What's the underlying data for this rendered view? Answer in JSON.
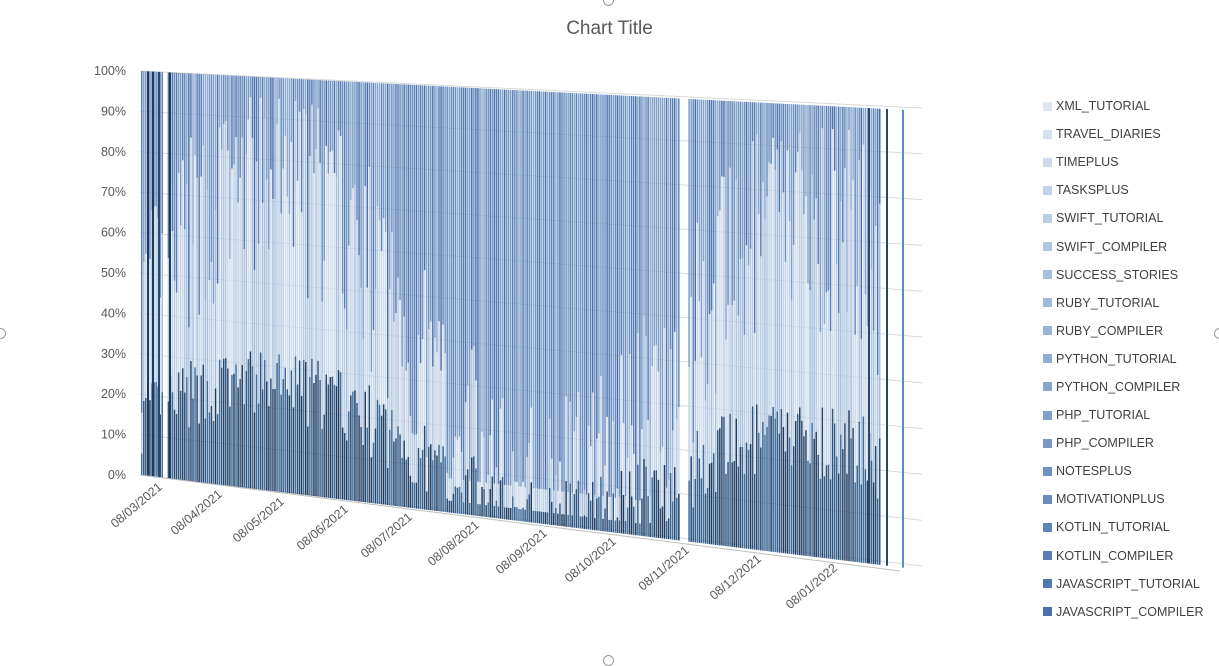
{
  "chart_data": {
    "type": "bar",
    "stacking": "percent",
    "view": "3d",
    "title": "Chart Title",
    "xlabel": "",
    "ylabel": "",
    "ylim": [
      0,
      1
    ],
    "y_ticks": [
      "0%",
      "10%",
      "20%",
      "30%",
      "40%",
      "50%",
      "60%",
      "70%",
      "80%",
      "90%",
      "100%"
    ],
    "x_ticks": [
      "08/03/2021",
      "08/04/2021",
      "08/05/2021",
      "08/06/2021",
      "08/07/2021",
      "08/08/2021",
      "08/09/2021",
      "08/10/2021",
      "08/11/2021",
      "08/12/2021",
      "08/01/2022"
    ],
    "grid": true,
    "legend_position": "right",
    "series": [
      {
        "name": "XML_TUTORIAL",
        "color": "#dde6f1"
      },
      {
        "name": "TRAVEL_DIARIES",
        "color": "#d5e0ee"
      },
      {
        "name": "TIMEPLUS",
        "color": "#ccdaea"
      },
      {
        "name": "TASKSPLUS",
        "color": "#c3d3e7"
      },
      {
        "name": "SWIFT_TUTORIAL",
        "color": "#bbcde3"
      },
      {
        "name": "SWIFT_COMPILER",
        "color": "#b2c6df"
      },
      {
        "name": "SUCCESS_STORIES",
        "color": "#a9c0dc"
      },
      {
        "name": "RUBY_TUTORIAL",
        "color": "#a1b9d8"
      },
      {
        "name": "RUBY_COMPILER",
        "color": "#98b3d4"
      },
      {
        "name": "PYTHON_TUTORIAL",
        "color": "#90acd1"
      },
      {
        "name": "PYTHON_COMPILER",
        "color": "#88a6cd"
      },
      {
        "name": "PHP_TUTORIAL",
        "color": "#809fca"
      },
      {
        "name": "PHP_COMPILER",
        "color": "#7899c6"
      },
      {
        "name": "NOTESPLUS",
        "color": "#7092c2"
      },
      {
        "name": "MOTIVATIONPLUS",
        "color": "#688cbe"
      },
      {
        "name": "KOTLIN_TUTORIAL",
        "color": "#6085ba"
      },
      {
        "name": "KOTLIN_COMPILER",
        "color": "#597fb6"
      },
      {
        "name": "JAVASCRIPT_TUTORIAL",
        "color": "#5278b1"
      },
      {
        "name": "JAVASCRIPT_COMPILER",
        "color": "#4a71ad"
      }
    ]
  }
}
